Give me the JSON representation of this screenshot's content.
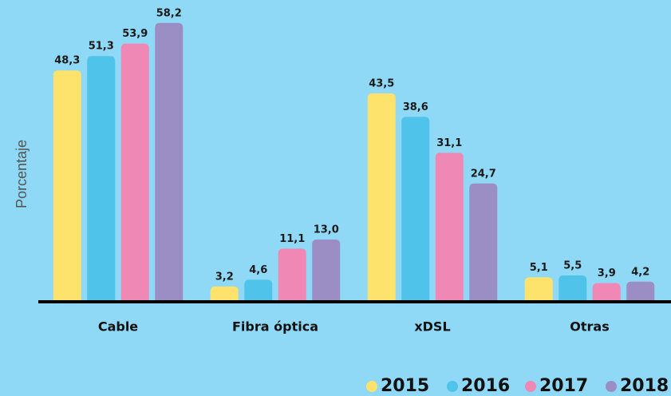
{
  "chart_data": {
    "type": "bar",
    "y_label": "Porcentaje",
    "categories": [
      "Cable",
      "Fibra óptica",
      "xDSL",
      "Otras"
    ],
    "series": [
      {
        "name": "2015",
        "color": "#fde36b",
        "values": [
          48.3,
          3.2,
          43.5,
          5.1
        ],
        "value_labels": [
          "48,3",
          "3,2",
          "43,5",
          "5,1"
        ]
      },
      {
        "name": "2016",
        "color": "#4fc3ea",
        "values": [
          51.3,
          4.6,
          38.6,
          5.5
        ],
        "value_labels": [
          "51,3",
          "4,6",
          "38,6",
          "5,5"
        ]
      },
      {
        "name": "2017",
        "color": "#f088b5",
        "values": [
          53.9,
          11.1,
          31.1,
          3.9
        ],
        "value_labels": [
          "53,9",
          "11,1",
          "31,1",
          "3,9"
        ]
      },
      {
        "name": "2018",
        "color": "#9b8ec4",
        "values": [
          58.2,
          13.0,
          24.7,
          4.2
        ],
        "value_labels": [
          "58,2",
          "13,0",
          "24,7",
          "4,2"
        ]
      }
    ],
    "ylim": [
      0,
      60
    ],
    "legend": "bottom-right"
  }
}
